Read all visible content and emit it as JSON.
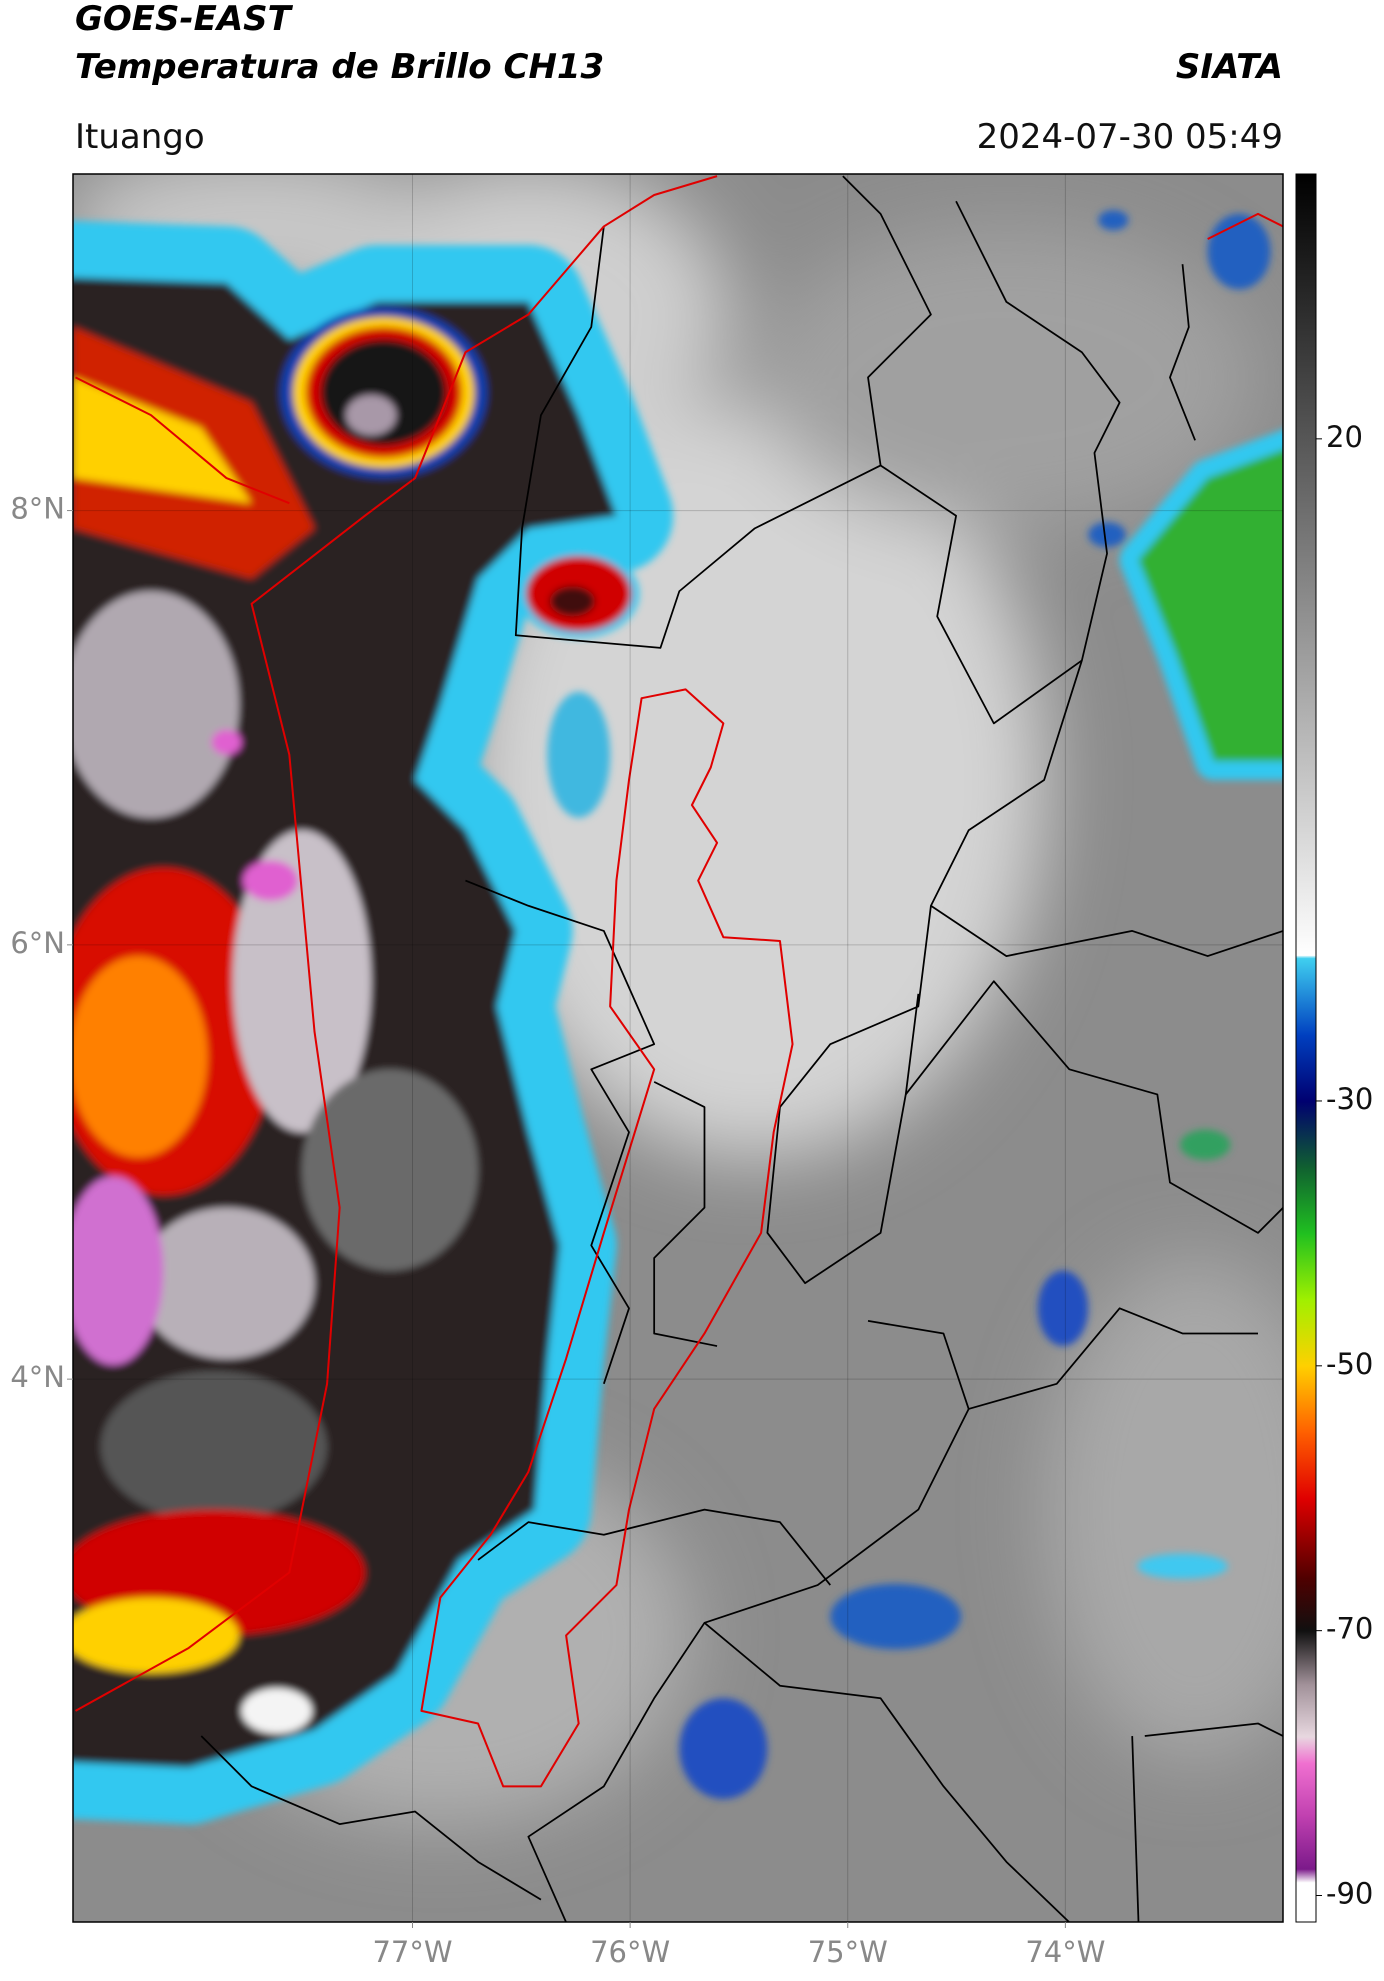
{
  "header": {
    "title": "GOES-EAST",
    "subtitle": "Temperatura de Brillo CH13",
    "brand": "SIATA",
    "location": "Ituango",
    "datetime": "2024-07-30 05:49"
  },
  "chart_data": {
    "type": "map",
    "xlim": [
      -78.56,
      -73.0
    ],
    "ylim": [
      1.5,
      9.55
    ],
    "xticks": [
      {
        "value": -77,
        "label": "77°W"
      },
      {
        "value": -76,
        "label": "76°W"
      },
      {
        "value": -75,
        "label": "75°W"
      },
      {
        "value": -74,
        "label": "74°W"
      }
    ],
    "yticks": [
      {
        "value": 4,
        "label": "4°N"
      },
      {
        "value": 6,
        "label": "6°N"
      },
      {
        "value": 8,
        "label": "8°N"
      }
    ],
    "grid": true,
    "colorbar": {
      "lim": [
        -92,
        40
      ],
      "ticks": [
        -90,
        -70,
        -50,
        -30,
        20
      ],
      "colors": [
        [
          -92,
          "#ffffff"
        ],
        [
          -89,
          "#ffffff"
        ],
        [
          -88,
          "#7b1a8a"
        ],
        [
          -84,
          "#c040b0"
        ],
        [
          -80,
          "#f070d0"
        ],
        [
          -78,
          "#e8d8e0"
        ],
        [
          -74,
          "#a09098"
        ],
        [
          -70,
          "#101010"
        ],
        [
          -66,
          "#500000"
        ],
        [
          -60,
          "#e00000"
        ],
        [
          -55,
          "#ff6000"
        ],
        [
          -50,
          "#ffd000"
        ],
        [
          -45,
          "#a0f000"
        ],
        [
          -40,
          "#20c020"
        ],
        [
          -35,
          "#106030"
        ],
        [
          -30,
          "#000070"
        ],
        [
          -25,
          "#0040c0"
        ],
        [
          -19.2,
          "#40d0f0"
        ],
        [
          -19,
          "#ffffff"
        ],
        [
          40,
          "#000000"
        ]
      ]
    }
  }
}
